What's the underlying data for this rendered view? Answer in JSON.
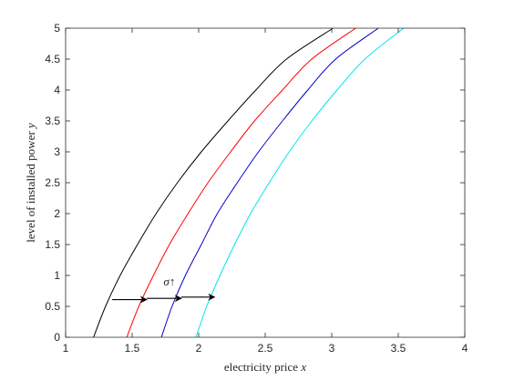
{
  "chart_data": {
    "type": "line",
    "xlabel": {
      "text": "electricity price ",
      "symbol": "x"
    },
    "ylabel": {
      "text": "level of installed power ",
      "symbol": "y"
    },
    "xlim": [
      1,
      4
    ],
    "ylim": [
      0,
      5
    ],
    "xticks": [
      1,
      1.5,
      2,
      2.5,
      3,
      3.5,
      4
    ],
    "yticks": [
      0,
      0.5,
      1,
      1.5,
      2,
      2.5,
      3,
      3.5,
      4,
      4.5,
      5
    ],
    "xtick_labels": [
      "1",
      "1.5",
      "2",
      "2.5",
      "3",
      "3.5",
      "4"
    ],
    "ytick_labels": [
      "0",
      "0.5",
      "1",
      "1.5",
      "2",
      "2.5",
      "3",
      "3.5",
      "4",
      "4.5",
      "5"
    ],
    "grid": false,
    "series": [
      {
        "color": "#000000",
        "points": [
          [
            1.21,
            0
          ],
          [
            1.3,
            0.5
          ],
          [
            1.41,
            1.0
          ],
          [
            1.54,
            1.5
          ],
          [
            1.68,
            2.0
          ],
          [
            1.84,
            2.5
          ],
          [
            2.02,
            3.0
          ],
          [
            2.22,
            3.5
          ],
          [
            2.43,
            4.0
          ],
          [
            2.66,
            4.5
          ],
          [
            3.01,
            5.0
          ]
        ]
      },
      {
        "color": "#ff0000",
        "points": [
          [
            1.46,
            0
          ],
          [
            1.55,
            0.5
          ],
          [
            1.66,
            1.0
          ],
          [
            1.78,
            1.5
          ],
          [
            1.92,
            2.0
          ],
          [
            2.07,
            2.5
          ],
          [
            2.24,
            3.0
          ],
          [
            2.42,
            3.5
          ],
          [
            2.63,
            4.0
          ],
          [
            2.85,
            4.5
          ],
          [
            3.18,
            5.0
          ]
        ]
      },
      {
        "color": "#0000cc",
        "points": [
          [
            1.72,
            0
          ],
          [
            1.8,
            0.5
          ],
          [
            1.9,
            1.0
          ],
          [
            2.02,
            1.5
          ],
          [
            2.14,
            2.0
          ],
          [
            2.29,
            2.5
          ],
          [
            2.45,
            3.0
          ],
          [
            2.63,
            3.5
          ],
          [
            2.82,
            4.0
          ],
          [
            3.03,
            4.5
          ],
          [
            3.35,
            5.0
          ]
        ]
      },
      {
        "color": "#00e5ee",
        "points": [
          [
            1.98,
            0
          ],
          [
            2.06,
            0.5
          ],
          [
            2.16,
            1.0
          ],
          [
            2.27,
            1.5
          ],
          [
            2.39,
            2.0
          ],
          [
            2.53,
            2.5
          ],
          [
            2.68,
            3.0
          ],
          [
            2.85,
            3.5
          ],
          [
            3.04,
            4.0
          ],
          [
            3.25,
            4.5
          ],
          [
            3.54,
            5.0
          ]
        ]
      }
    ],
    "annotations": [
      {
        "type": "arrow",
        "from": [
          1.35,
          0.61
        ],
        "to": [
          1.61,
          0.61
        ]
      },
      {
        "type": "arrow",
        "from": [
          1.61,
          0.63
        ],
        "to": [
          1.87,
          0.63
        ]
      },
      {
        "type": "arrow",
        "from": [
          1.87,
          0.65
        ],
        "to": [
          2.12,
          0.65
        ]
      },
      {
        "type": "text",
        "symbol": "σ",
        "text": "↑",
        "at": [
          1.78,
          0.84
        ]
      }
    ]
  }
}
